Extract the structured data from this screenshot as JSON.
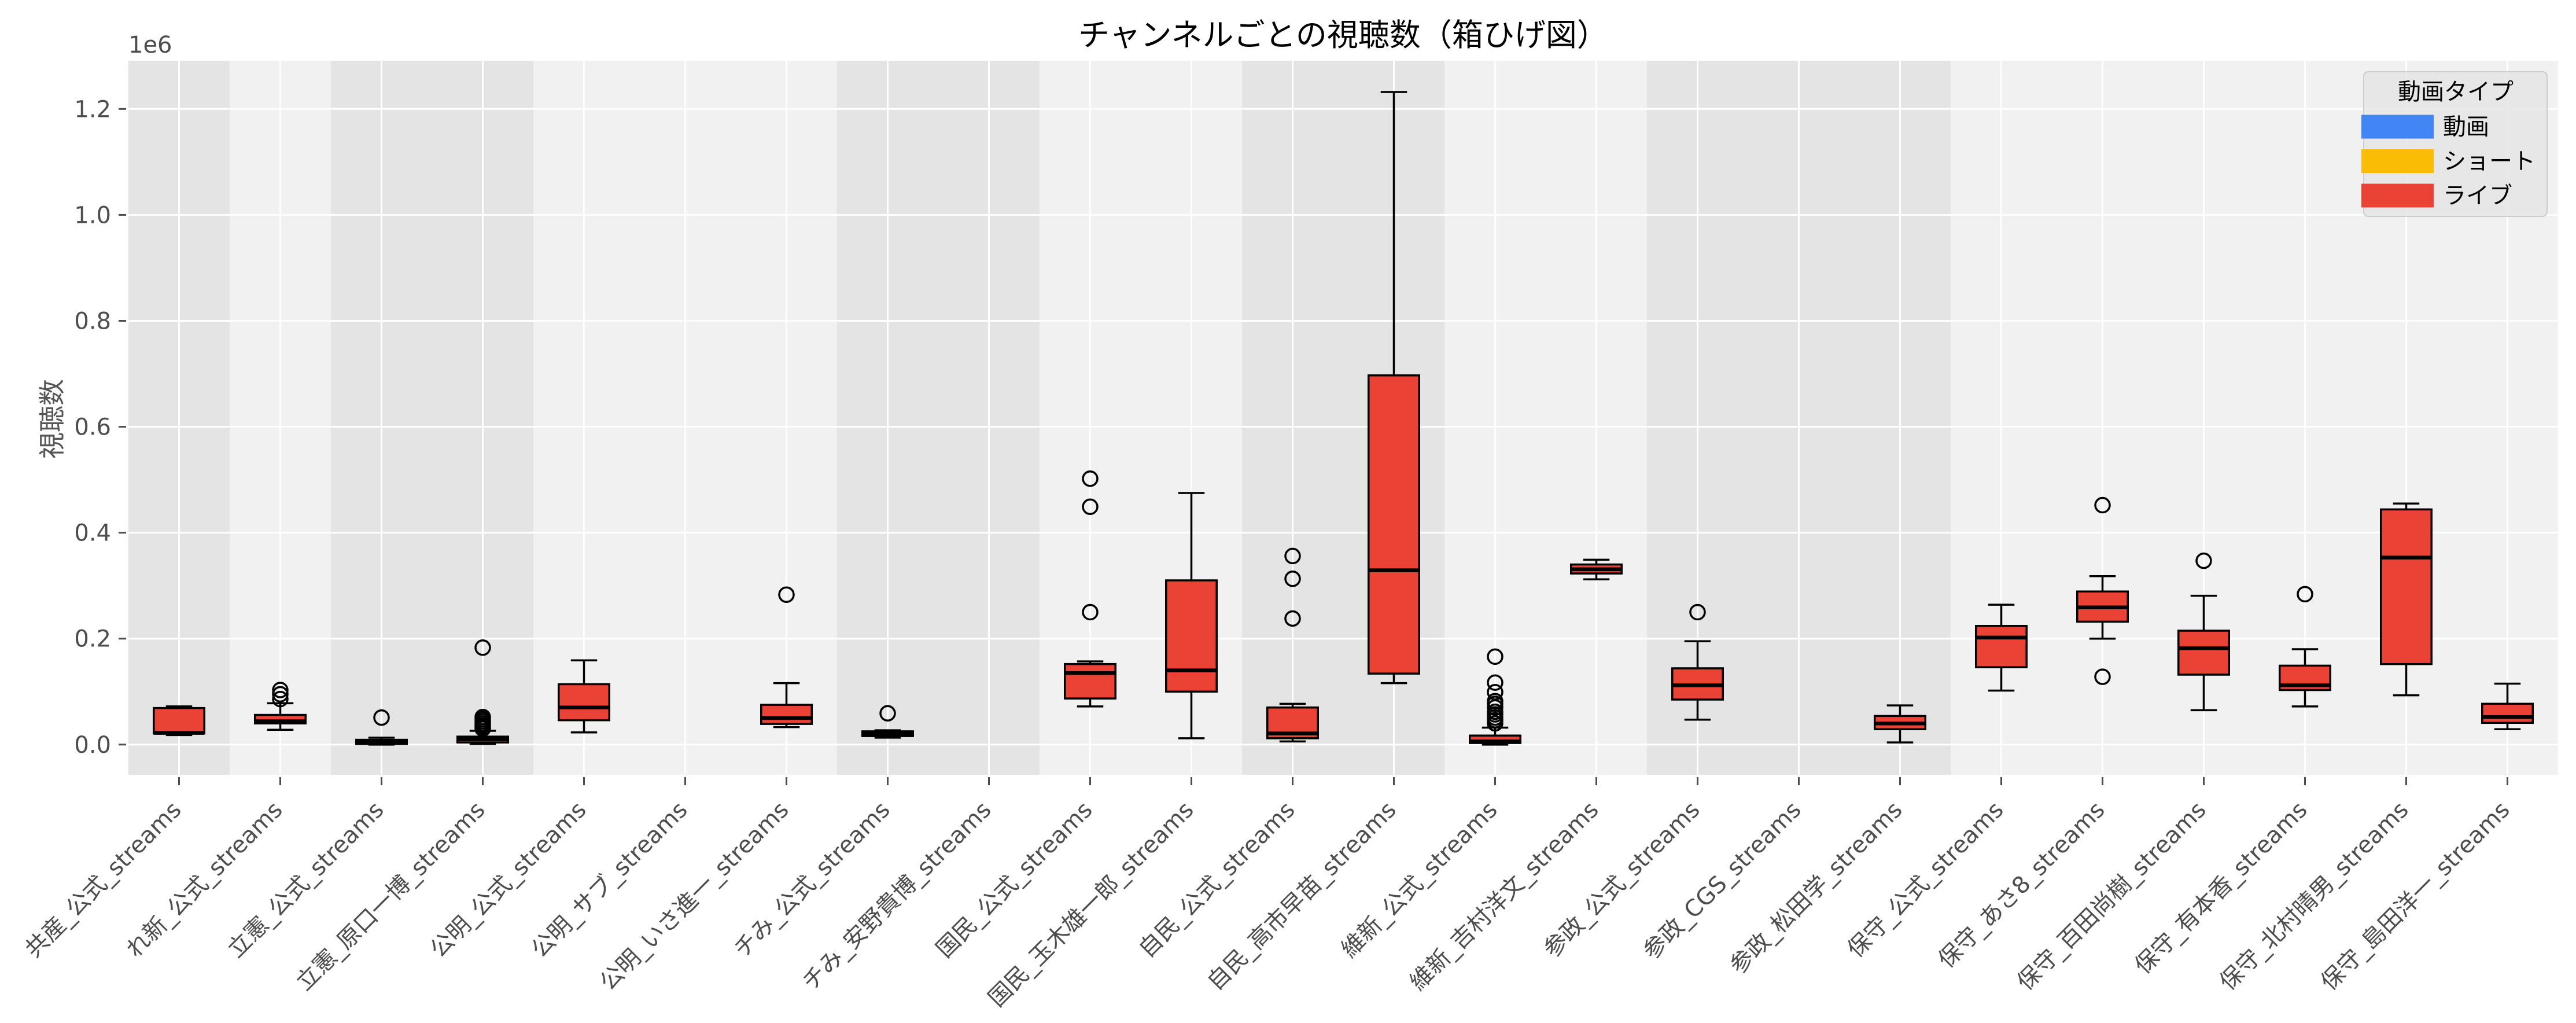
{
  "chart_data": {
    "type": "boxplot",
    "title": "チャンネルごとの視聴数（箱ひげ図）",
    "xlabel": "",
    "ylabel": "視聴数",
    "y_offset_text": "1e6",
    "ylim": [
      -57000,
      1291000
    ],
    "yticks": [
      0,
      200000,
      400000,
      600000,
      800000,
      1000000,
      1200000
    ],
    "ytick_labels": [
      "0.0",
      "0.2",
      "0.4",
      "0.6",
      "0.8",
      "1.0",
      "1.2"
    ],
    "grid": true,
    "x_tick_rotation": 45,
    "legend": {
      "title": "動画タイプ",
      "position": "upper right",
      "entries": [
        {
          "label": "動画",
          "color": "#4285F4"
        },
        {
          "label": "ショート",
          "color": "#FBBC05"
        },
        {
          "label": "ライブ",
          "color": "#EA4335"
        }
      ]
    },
    "band_colors": {
      "dark": "#e4e4e4",
      "light": "#f1f1f1"
    },
    "background_bands": [
      {
        "from": 0,
        "to": 0,
        "shade": "dark"
      },
      {
        "from": 1,
        "to": 1,
        "shade": "light"
      },
      {
        "from": 2,
        "to": 3,
        "shade": "dark"
      },
      {
        "from": 4,
        "to": 6,
        "shade": "light"
      },
      {
        "from": 7,
        "to": 8,
        "shade": "dark"
      },
      {
        "from": 9,
        "to": 10,
        "shade": "light"
      },
      {
        "from": 11,
        "to": 12,
        "shade": "dark"
      },
      {
        "from": 13,
        "to": 14,
        "shade": "light"
      },
      {
        "from": 15,
        "to": 17,
        "shade": "dark"
      },
      {
        "from": 18,
        "to": 23,
        "shade": "light"
      }
    ],
    "categories": [
      "共産_公式_streams",
      "れ新_公式_streams",
      "立憲_公式_streams",
      "立憲_原口一博_streams",
      "公明_公式_streams",
      "公明_サブ_streams",
      "公明_いさ進一_streams",
      "チみ_公式_streams",
      "チみ_安野貴博_streams",
      "国民_公式_streams",
      "国民_玉木雄一郎_streams",
      "自民_公式_streams",
      "自民_高市早苗_streams",
      "維新_公式_streams",
      "維新_吉村洋文_streams",
      "参政_公式_streams",
      "参政_CGS_streams",
      "参政_松田学_streams",
      "保守_公式_streams",
      "保守_あさ8_streams",
      "保守_百田尚樹_streams",
      "保守_有本香_streams",
      "保守_北村晴男_streams",
      "保守_島田洋一_streams"
    ],
    "series": [
      {
        "name": "ライブ",
        "color": "#EA4335",
        "boxes": [
          {
            "min": 18000,
            "q1": 21000,
            "median": 22000,
            "q3": 69000,
            "max": 72000,
            "outliers": []
          },
          {
            "min": 28000,
            "q1": 40000,
            "median": 44000,
            "q3": 56000,
            "max": 78000,
            "outliers": [
              86000,
              95000,
              103000
            ]
          },
          {
            "min": 0,
            "q1": 1000,
            "median": 5000,
            "q3": 9000,
            "max": 13000,
            "outliers": [
              51000
            ]
          },
          {
            "min": 1000,
            "q1": 4000,
            "median": 10000,
            "q3": 15000,
            "max": 26000,
            "outliers": [
              30000,
              33000,
              36000,
              40000,
              44000,
              48000,
              52000,
              183000
            ]
          },
          {
            "min": 23000,
            "q1": 46000,
            "median": 70000,
            "q3": 114000,
            "max": 159000,
            "outliers": []
          },
          null,
          {
            "min": 33000,
            "q1": 39000,
            "median": 50000,
            "q3": 75000,
            "max": 116000,
            "outliers": [
              283000
            ]
          },
          {
            "min": 13000,
            "q1": 16000,
            "median": 20000,
            "q3": 25000,
            "max": 27000,
            "outliers": [
              59000
            ]
          },
          null,
          {
            "min": 72000,
            "q1": 87000,
            "median": 135000,
            "q3": 152000,
            "max": 157000,
            "outliers": [
              250000,
              449000,
              502000
            ]
          },
          {
            "min": 12000,
            "q1": 100000,
            "median": 140000,
            "q3": 310000,
            "max": 475000,
            "outliers": []
          },
          {
            "min": 6000,
            "q1": 12000,
            "median": 21000,
            "q3": 70000,
            "max": 77000,
            "outliers": [
              238000,
              313000,
              356000
            ]
          },
          {
            "min": 116000,
            "q1": 134000,
            "median": 329000,
            "q3": 697000,
            "max": 1232000,
            "outliers": []
          },
          {
            "min": 0,
            "q1": 3000,
            "median": 6000,
            "q3": 17000,
            "max": 32000,
            "outliers": [
              40000,
              46000,
              51000,
              57000,
              62000,
              70000,
              77000,
              82000,
              99000,
              117000,
              166000
            ]
          },
          {
            "min": 312000,
            "q1": 323000,
            "median": 331000,
            "q3": 340000,
            "max": 349000,
            "outliers": []
          },
          {
            "min": 47000,
            "q1": 85000,
            "median": 112000,
            "q3": 144000,
            "max": 195000,
            "outliers": [
              250000
            ]
          },
          null,
          {
            "min": 4000,
            "q1": 29000,
            "median": 40000,
            "q3": 54000,
            "max": 74000,
            "outliers": []
          },
          {
            "min": 102000,
            "q1": 146000,
            "median": 202000,
            "q3": 224000,
            "max": 264000,
            "outliers": []
          },
          {
            "min": 200000,
            "q1": 232000,
            "median": 259000,
            "q3": 289000,
            "max": 318000,
            "outliers": [
              128000,
              452000
            ]
          },
          {
            "min": 65000,
            "q1": 132000,
            "median": 182000,
            "q3": 215000,
            "max": 281000,
            "outliers": [
              347000
            ]
          },
          {
            "min": 72000,
            "q1": 103000,
            "median": 112000,
            "q3": 149000,
            "max": 180000,
            "outliers": [
              284000
            ]
          },
          {
            "min": 93000,
            "q1": 152000,
            "median": 353000,
            "q3": 444000,
            "max": 455000,
            "outliers": []
          },
          {
            "min": 29000,
            "q1": 41000,
            "median": 52000,
            "q3": 77000,
            "max": 115000,
            "outliers": []
          }
        ]
      }
    ]
  }
}
